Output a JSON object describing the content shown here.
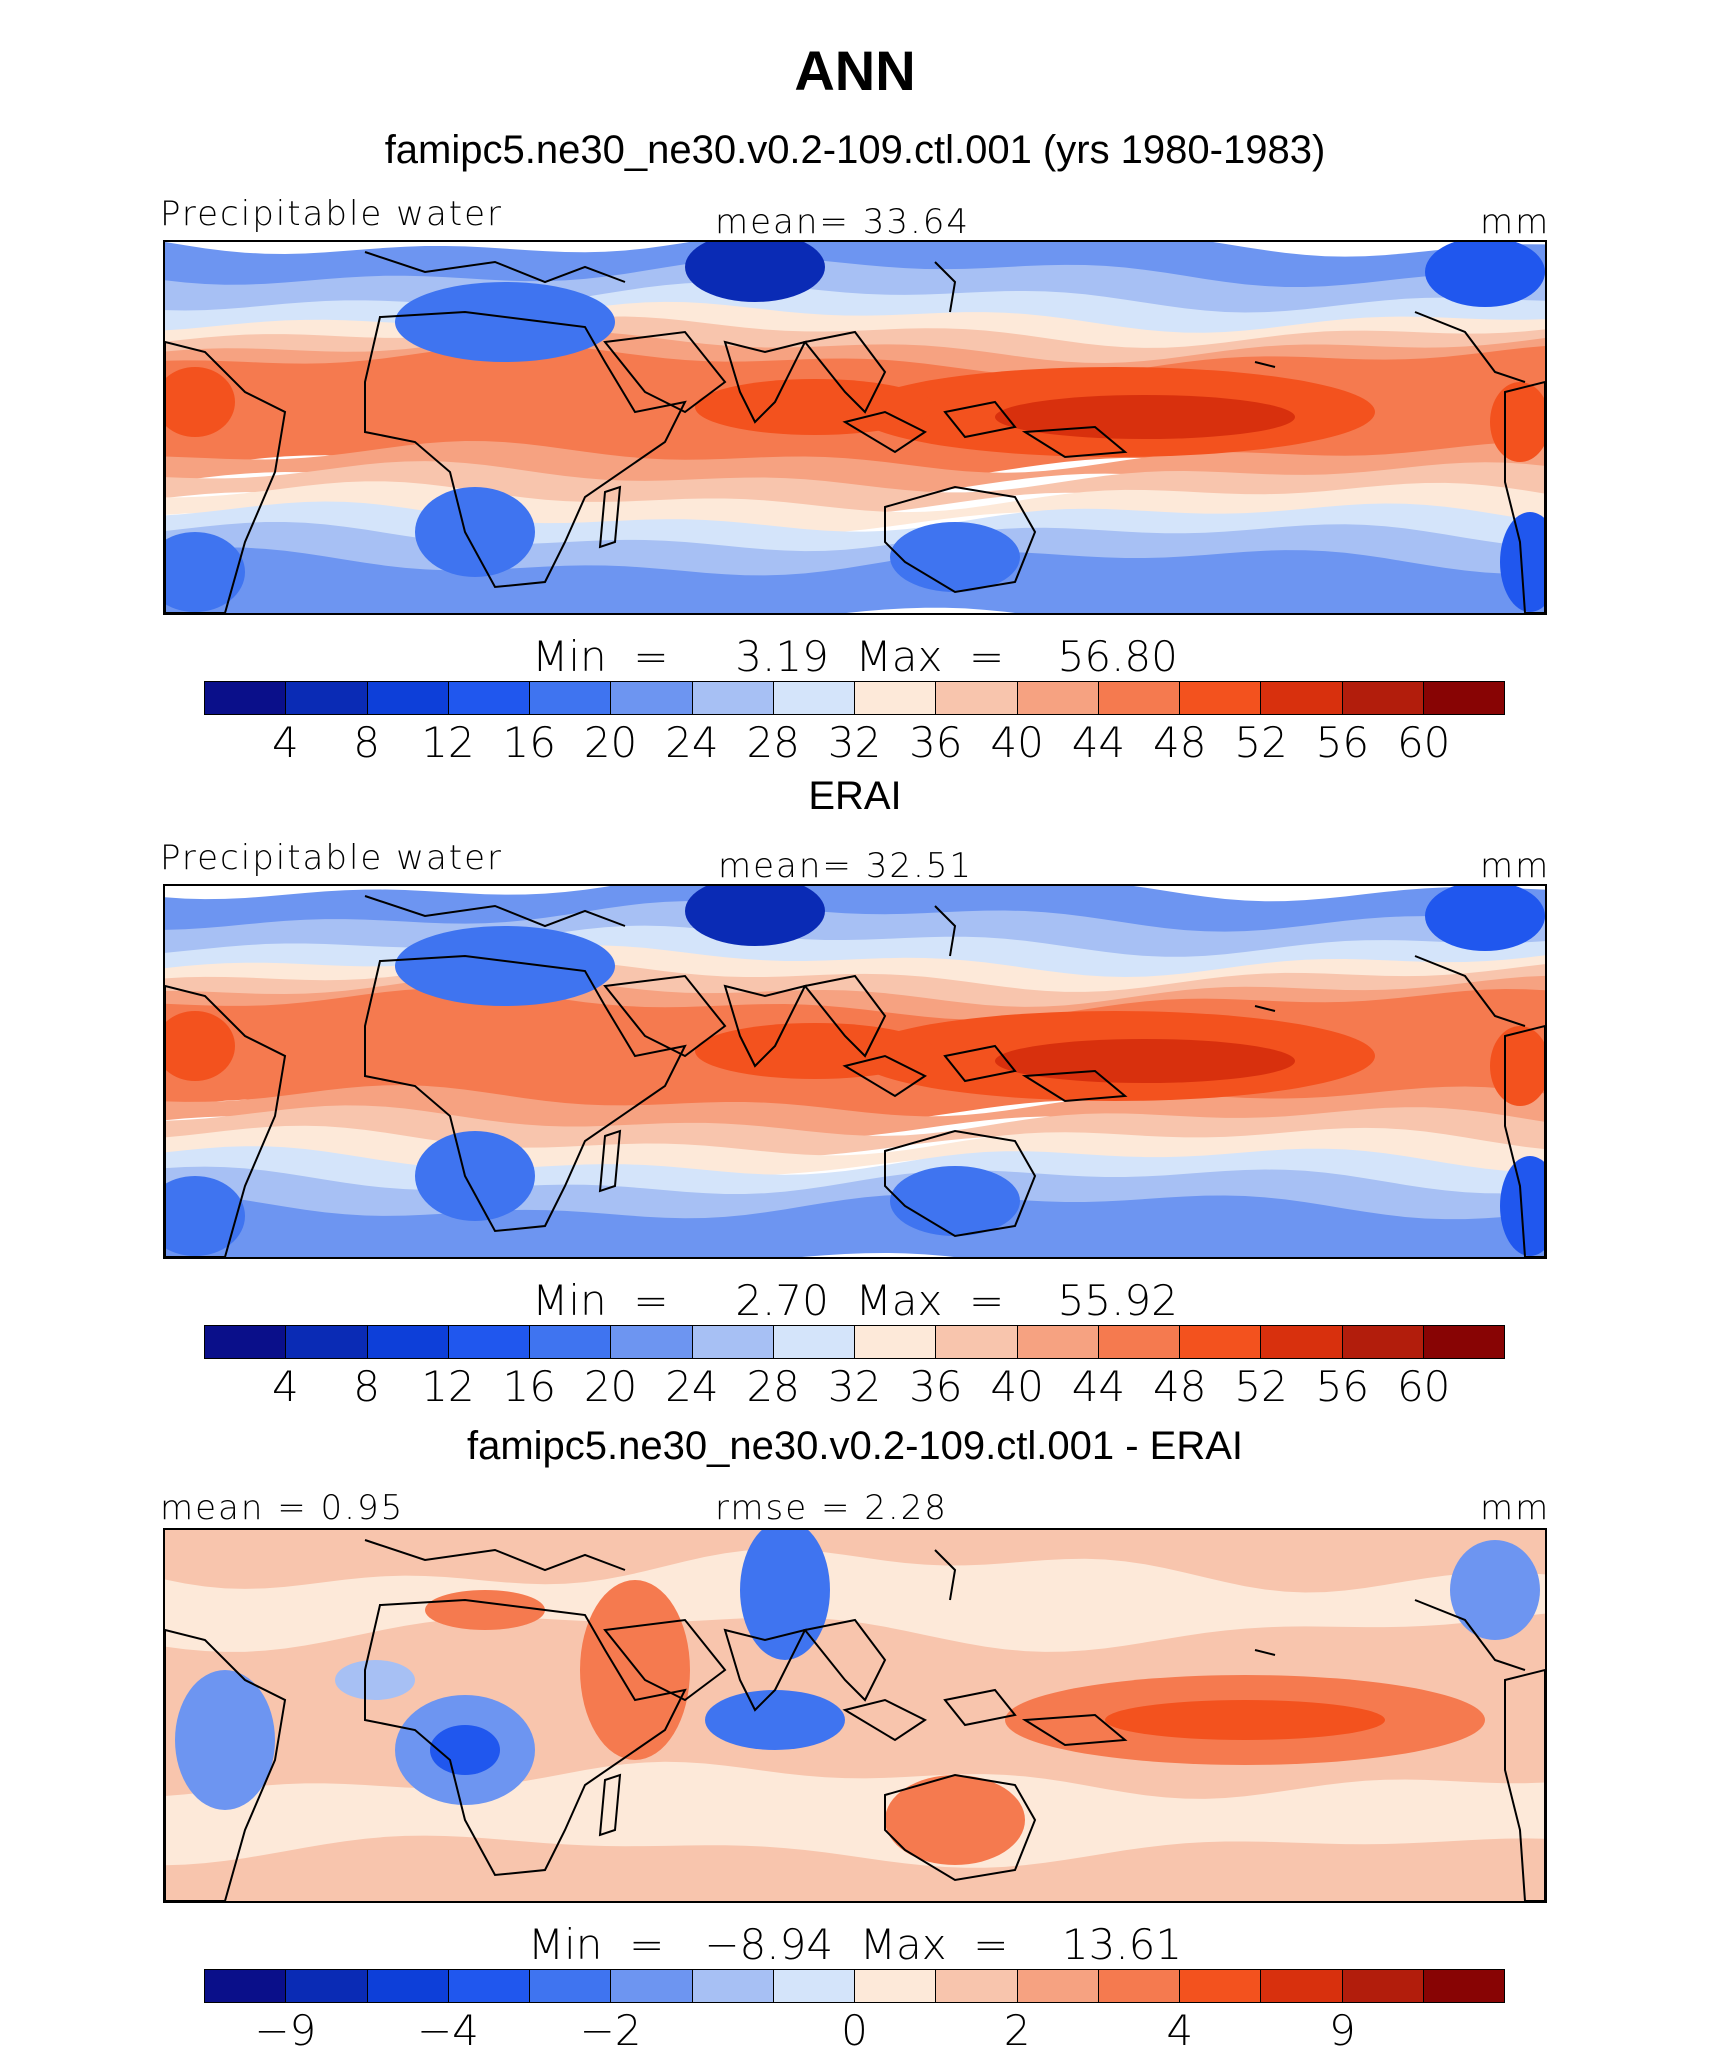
{
  "title": "ANN",
  "colors": {
    "palette": [
      "#0a0f8a",
      "#0a2bb5",
      "#0d3fd9",
      "#2057ee",
      "#3f74f0",
      "#6d95f1",
      "#a7c0f4",
      "#d4e4fa",
      "#fde9d9",
      "#f8c5ad",
      "#f6a281",
      "#f57a4f",
      "#f3521e",
      "#d8300d",
      "#b21d0c",
      "#880404"
    ]
  },
  "panels": [
    {
      "title": "famipc5.ne30_ne30.v0.2-109.ctl.001 (yrs 1980-1983)",
      "left_label": "Precipitable water",
      "center_label": "mean=   33.64",
      "units": "mm",
      "minmax": "Min  =     3.19  Max  =    56.80",
      "ticks": [
        "4",
        "8",
        "12",
        "16",
        "20",
        "24",
        "28",
        "32",
        "36",
        "40",
        "44",
        "48",
        "52",
        "56",
        "60"
      ],
      "map_style": "model"
    },
    {
      "title": "ERAI",
      "left_label": "Precipitable water",
      "center_label": "mean=   32.51",
      "units": "mm",
      "minmax": "Min  =     2.70  Max  =    55.92",
      "ticks": [
        "4",
        "8",
        "12",
        "16",
        "20",
        "24",
        "28",
        "32",
        "36",
        "40",
        "44",
        "48",
        "52",
        "56",
        "60"
      ],
      "map_style": "obs"
    },
    {
      "title": "famipc5.ne30_ne30.v0.2-109.ctl.001 - ERAI",
      "left_label": "mean =    0.95",
      "center_label": "rmse =    2.28",
      "units": "mm",
      "minmax": "Min  =   −8.94  Max  =    13.61",
      "ticks": [
        "−9",
        "−4",
        "−2",
        "0",
        "2",
        "4",
        "9"
      ],
      "map_style": "diff"
    }
  ]
}
